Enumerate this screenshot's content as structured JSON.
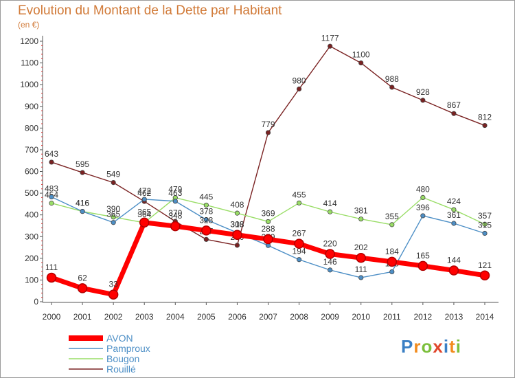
{
  "title": "Evolution du Montant de la Dette par Habitant",
  "unit_label": "(en €)",
  "logo": {
    "text": "Proxiti",
    "colors": [
      "#3a7fc4",
      "#f28c1e",
      "#7cbf3c",
      "#e0462b",
      "#3a7fc4",
      "#f28c1e",
      "#7cbf3c"
    ]
  },
  "chart_data": {
    "type": "line",
    "x": [
      2000,
      2001,
      2002,
      2003,
      2004,
      2005,
      2006,
      2007,
      2008,
      2009,
      2010,
      2011,
      2012,
      2013,
      2014
    ],
    "ylim": [
      0,
      1200
    ],
    "yticks": [
      0,
      100,
      200,
      300,
      400,
      500,
      600,
      700,
      800,
      900,
      1000,
      1100,
      1200
    ],
    "grid": false,
    "legend_position": "bottom-left",
    "series": [
      {
        "name": "Rouillé",
        "color": "#7a2222",
        "values": [
          643,
          595,
          549,
          462,
          370,
          287,
          260,
          779,
          980,
          1177,
          1100,
          988,
          928,
          867,
          812
        ]
      },
      {
        "name": "Bougon",
        "color": "#99dd66",
        "values": [
          454,
          416,
          390,
          364,
          479,
          445,
          408,
          369,
          455,
          414,
          381,
          355,
          480,
          424,
          357
        ]
      },
      {
        "name": "Pamproux",
        "color": "#4d8fc6",
        "values": [
          483,
          416,
          365,
          472,
          463,
          378,
          318,
          259,
          194,
          146,
          111,
          138,
          396,
          361,
          315
        ]
      },
      {
        "name": "AVON",
        "color": "#ff0000",
        "values": [
          111,
          62,
          33,
          365,
          348,
          328,
          308,
          288,
          267,
          220,
          202,
          184,
          165,
          144,
          121
        ]
      }
    ],
    "legend_order": [
      "AVON",
      "Pamproux",
      "Bougon",
      "Rouillé"
    ]
  }
}
